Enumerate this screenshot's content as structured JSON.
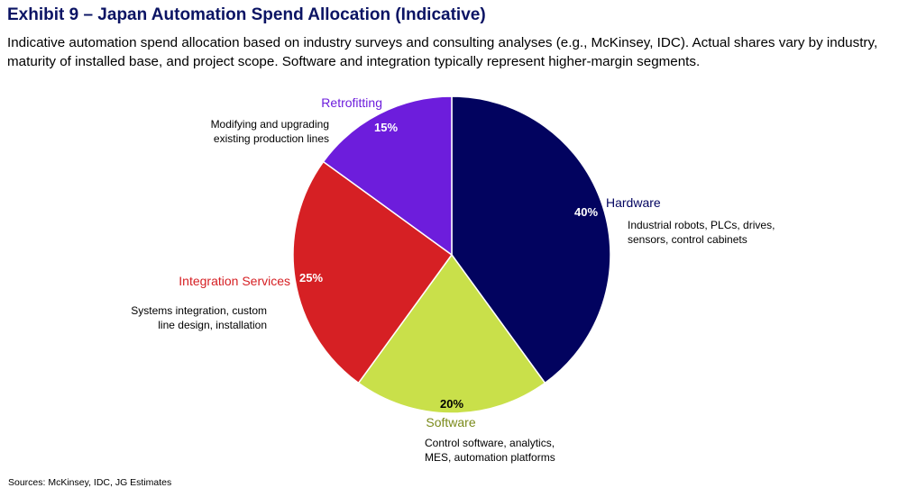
{
  "header": {
    "title": "Exhibit 9 – Japan Automation Spend Allocation (Indicative)",
    "subtitle": "Indicative automation spend allocation based on industry surveys and consulting analyses (e.g., McKinsey, IDC). Actual shares vary by industry, maturity of installed base, and project scope. Software and integration typically represent higher-margin segments."
  },
  "footer": {
    "source": "Sources: McKinsey, IDC, JG Estimates"
  },
  "chart_data": {
    "type": "pie",
    "title": "Exhibit 9 – Japan Automation Spend Allocation (Indicative)",
    "unit": "%",
    "slices": [
      {
        "label": "Hardware",
        "value": 40,
        "value_label": "40%",
        "color": "#02035f",
        "label_color": "#02035f",
        "pct_color": "#ffffff",
        "description": [
          "Industrial robots, PLCs, drives,",
          "sensors, control cabinets"
        ]
      },
      {
        "label": "Software",
        "value": 20,
        "value_label": "20%",
        "color": "#c9e04a",
        "label_color": "#7a8a1a",
        "pct_color": "#000000",
        "description": [
          "Control software, analytics,",
          "MES, automation platforms"
        ]
      },
      {
        "label": "Integration Services",
        "value": 25,
        "value_label": "25%",
        "color": "#d62024",
        "label_color": "#d62024",
        "pct_color": "#ffffff",
        "description": [
          "Systems integration, custom",
          "line design, installation"
        ]
      },
      {
        "label": "Retrofitting",
        "value": 15,
        "value_label": "15%",
        "color": "#6d1ddc",
        "label_color": "#6d1ddc",
        "pct_color": "#ffffff",
        "description": [
          "Modifying and upgrading",
          "existing production lines"
        ]
      }
    ],
    "start_angle": "12 o'clock",
    "direction": "clockwise",
    "legend": "none"
  }
}
